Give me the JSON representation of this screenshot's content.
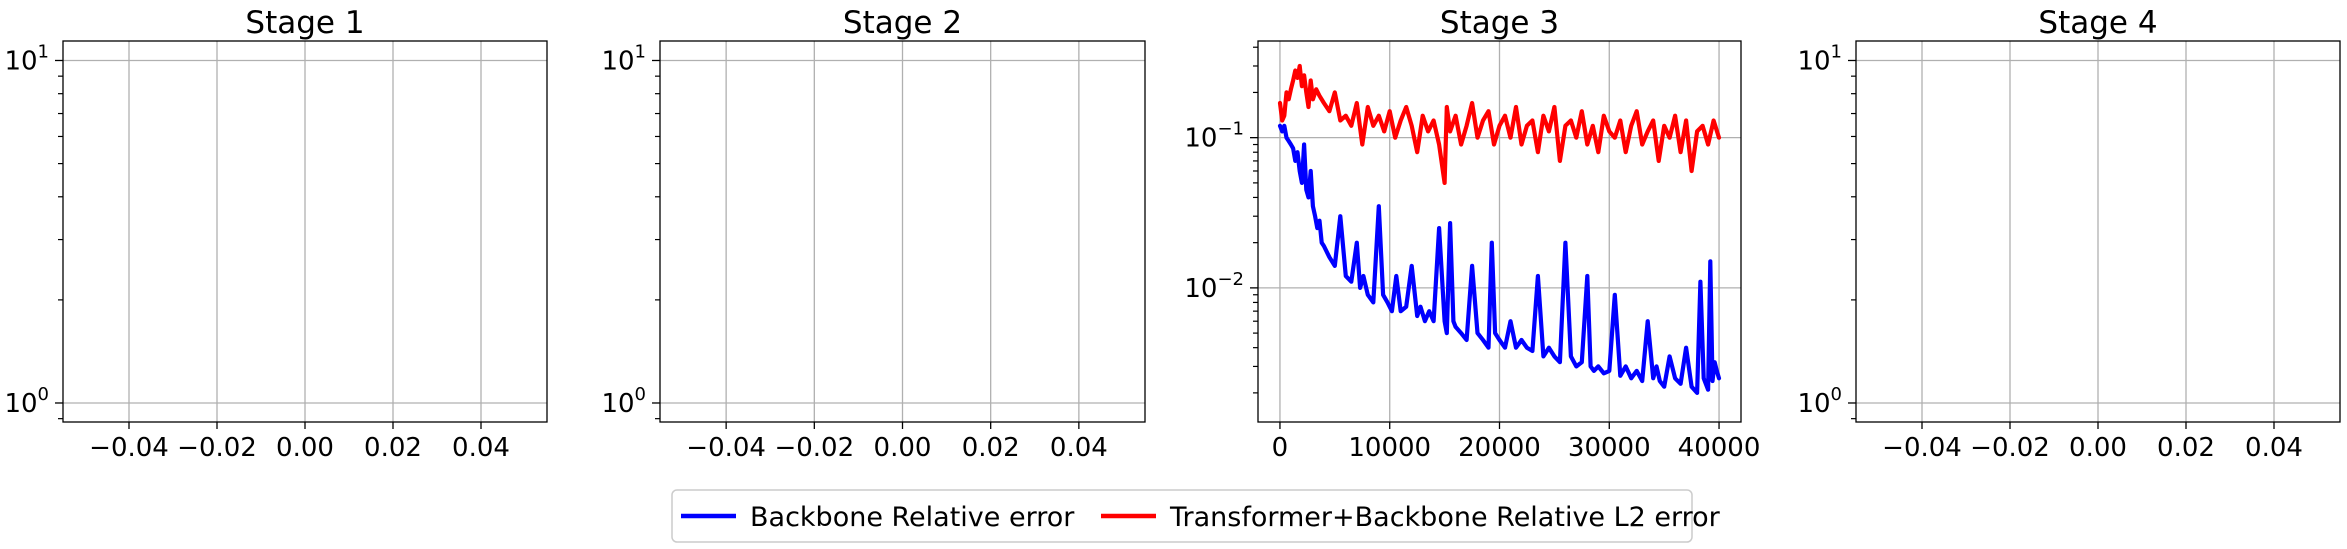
{
  "figure": {
    "colors": {
      "backbone": "#0000ff",
      "transformer": "#ff0000",
      "grid": "#b0b0b0",
      "axes": "#000000"
    }
  },
  "legend": {
    "placement": "bottom-center",
    "entries": [
      {
        "label": "Backbone Relative error",
        "color": "#0000ff"
      },
      {
        "label": "Transformer+Backbone Relative L2 error",
        "color": "#ff0000"
      }
    ]
  },
  "chart_data": [
    {
      "type": "line",
      "title": "Stage 1",
      "xlabel": "",
      "ylabel": "",
      "xlim": [
        -0.055,
        0.055
      ],
      "ylim": [
        0.88,
        11.4
      ],
      "yscale": "log",
      "grid": true,
      "xticks": [
        -0.04,
        -0.02,
        0.0,
        0.02,
        0.04
      ],
      "xtick_labels": [
        "−0.04",
        "−0.02",
        "0.00",
        "0.02",
        "0.04"
      ],
      "yticks": [
        1,
        10
      ],
      "ytick_labels": [
        {
          "base": "10",
          "exp": "0"
        },
        {
          "base": "10",
          "exp": "1"
        }
      ],
      "series": []
    },
    {
      "type": "line",
      "title": "Stage 2",
      "xlabel": "",
      "ylabel": "",
      "xlim": [
        -0.055,
        0.055
      ],
      "ylim": [
        0.88,
        11.4
      ],
      "yscale": "log",
      "grid": true,
      "xticks": [
        -0.04,
        -0.02,
        0.0,
        0.02,
        0.04
      ],
      "xtick_labels": [
        "−0.04",
        "−0.02",
        "0.00",
        "0.02",
        "0.04"
      ],
      "yticks": [
        1,
        10
      ],
      "ytick_labels": [
        {
          "base": "10",
          "exp": "0"
        },
        {
          "base": "10",
          "exp": "1"
        }
      ],
      "series": []
    },
    {
      "type": "line",
      "title": "Stage 3",
      "xlabel": "",
      "ylabel": "",
      "xlim": [
        -2000,
        42000
      ],
      "ylim": [
        0.00128,
        0.44
      ],
      "yscale": "log",
      "grid": true,
      "xticks": [
        0,
        10000,
        20000,
        30000,
        40000
      ],
      "xtick_labels": [
        "0",
        "10000",
        "20000",
        "30000",
        "40000"
      ],
      "yticks": [
        0.01,
        0.1
      ],
      "ytick_labels": [
        {
          "base": "10",
          "exp": "−2"
        },
        {
          "base": "10",
          "exp": "−1"
        }
      ],
      "series": [
        {
          "name": "Backbone Relative error",
          "color": "#0000ff",
          "x": [
            0,
            200,
            400,
            600,
            800,
            1000,
            1200,
            1400,
            1600,
            1800,
            2000,
            2200,
            2400,
            2600,
            2800,
            3000,
            3200,
            3400,
            3600,
            3800,
            4000,
            4500,
            5000,
            5500,
            6000,
            6500,
            7000,
            7300,
            7600,
            8000,
            8500,
            9000,
            9400,
            9800,
            10200,
            10600,
            11000,
            11500,
            12000,
            12500,
            12800,
            13200,
            13600,
            14000,
            14500,
            15000,
            15200,
            15500,
            15800,
            16000,
            16500,
            17000,
            17500,
            18000,
            18500,
            19000,
            19300,
            19600,
            20000,
            20500,
            21000,
            21500,
            22000,
            22500,
            23000,
            23500,
            24000,
            24500,
            25000,
            25500,
            26000,
            26500,
            27000,
            27500,
            28000,
            28300,
            28600,
            29000,
            29500,
            30000,
            30500,
            31000,
            31500,
            32000,
            32500,
            33000,
            33500,
            34000,
            34300,
            34600,
            35000,
            35500,
            36000,
            36500,
            37000,
            37500,
            38000,
            38300,
            38600,
            39000,
            39200,
            39400,
            39600,
            39800,
            40000
          ],
          "y": [
            0.12,
            0.11,
            0.12,
            0.1,
            0.095,
            0.09,
            0.085,
            0.07,
            0.08,
            0.06,
            0.05,
            0.09,
            0.045,
            0.04,
            0.06,
            0.035,
            0.03,
            0.025,
            0.028,
            0.02,
            0.019,
            0.016,
            0.014,
            0.03,
            0.012,
            0.011,
            0.02,
            0.01,
            0.012,
            0.009,
            0.008,
            0.035,
            0.009,
            0.008,
            0.007,
            0.012,
            0.007,
            0.0075,
            0.014,
            0.0065,
            0.0075,
            0.006,
            0.007,
            0.006,
            0.025,
            0.006,
            0.005,
            0.027,
            0.006,
            0.0055,
            0.005,
            0.0045,
            0.014,
            0.005,
            0.0045,
            0.004,
            0.02,
            0.005,
            0.0045,
            0.004,
            0.006,
            0.004,
            0.0045,
            0.004,
            0.0038,
            0.012,
            0.0035,
            0.004,
            0.0035,
            0.0032,
            0.02,
            0.0035,
            0.003,
            0.0032,
            0.012,
            0.003,
            0.0028,
            0.003,
            0.0027,
            0.0028,
            0.009,
            0.0026,
            0.003,
            0.0025,
            0.0028,
            0.0024,
            0.006,
            0.0025,
            0.003,
            0.0024,
            0.0022,
            0.0035,
            0.0025,
            0.0023,
            0.004,
            0.0022,
            0.002,
            0.011,
            0.0025,
            0.0021,
            0.015,
            0.0024,
            0.0032,
            0.0028,
            0.0025
          ]
        },
        {
          "name": "Transformer+Backbone Relative L2 error",
          "color": "#ff0000",
          "x": [
            0,
            200,
            400,
            600,
            800,
            1000,
            1200,
            1400,
            1600,
            1800,
            2000,
            2200,
            2400,
            2600,
            2800,
            3000,
            3300,
            3600,
            4000,
            4500,
            5000,
            5500,
            6000,
            6500,
            7000,
            7500,
            8000,
            8500,
            9000,
            9500,
            10000,
            10500,
            11000,
            11500,
            12000,
            12500,
            13000,
            13500,
            14000,
            14500,
            15000,
            15200,
            15500,
            16000,
            16500,
            17000,
            17500,
            18000,
            18500,
            19000,
            19500,
            20000,
            20500,
            21000,
            21500,
            22000,
            22500,
            23000,
            23500,
            24000,
            24500,
            25000,
            25500,
            26000,
            26500,
            27000,
            27500,
            28000,
            28500,
            29000,
            29500,
            30000,
            30500,
            31000,
            31500,
            32000,
            32500,
            33000,
            33500,
            34000,
            34500,
            35000,
            35500,
            36000,
            36500,
            37000,
            37500,
            38000,
            38500,
            39000,
            39500,
            40000
          ],
          "y": [
            0.17,
            0.13,
            0.14,
            0.2,
            0.18,
            0.21,
            0.24,
            0.28,
            0.25,
            0.3,
            0.22,
            0.26,
            0.2,
            0.16,
            0.24,
            0.18,
            0.21,
            0.19,
            0.17,
            0.15,
            0.2,
            0.13,
            0.14,
            0.12,
            0.17,
            0.09,
            0.16,
            0.12,
            0.14,
            0.11,
            0.15,
            0.1,
            0.13,
            0.16,
            0.12,
            0.08,
            0.14,
            0.11,
            0.13,
            0.09,
            0.05,
            0.16,
            0.11,
            0.14,
            0.09,
            0.12,
            0.17,
            0.1,
            0.13,
            0.15,
            0.09,
            0.12,
            0.14,
            0.1,
            0.16,
            0.09,
            0.12,
            0.13,
            0.08,
            0.14,
            0.11,
            0.16,
            0.07,
            0.12,
            0.13,
            0.1,
            0.15,
            0.09,
            0.12,
            0.08,
            0.14,
            0.11,
            0.1,
            0.13,
            0.08,
            0.12,
            0.15,
            0.09,
            0.11,
            0.13,
            0.07,
            0.12,
            0.1,
            0.14,
            0.08,
            0.13,
            0.06,
            0.11,
            0.12,
            0.09,
            0.13,
            0.1
          ]
        }
      ]
    },
    {
      "type": "line",
      "title": "Stage 4",
      "xlabel": "",
      "ylabel": "",
      "xlim": [
        -0.055,
        0.055
      ],
      "ylim": [
        0.88,
        11.4
      ],
      "yscale": "log",
      "grid": true,
      "xticks": [
        -0.04,
        -0.02,
        0.0,
        0.02,
        0.04
      ],
      "xtick_labels": [
        "−0.04",
        "−0.02",
        "0.00",
        "0.02",
        "0.04"
      ],
      "yticks": [
        1,
        10
      ],
      "ytick_labels": [
        {
          "base": "10",
          "exp": "0"
        },
        {
          "base": "10",
          "exp": "1"
        }
      ],
      "series": []
    }
  ]
}
